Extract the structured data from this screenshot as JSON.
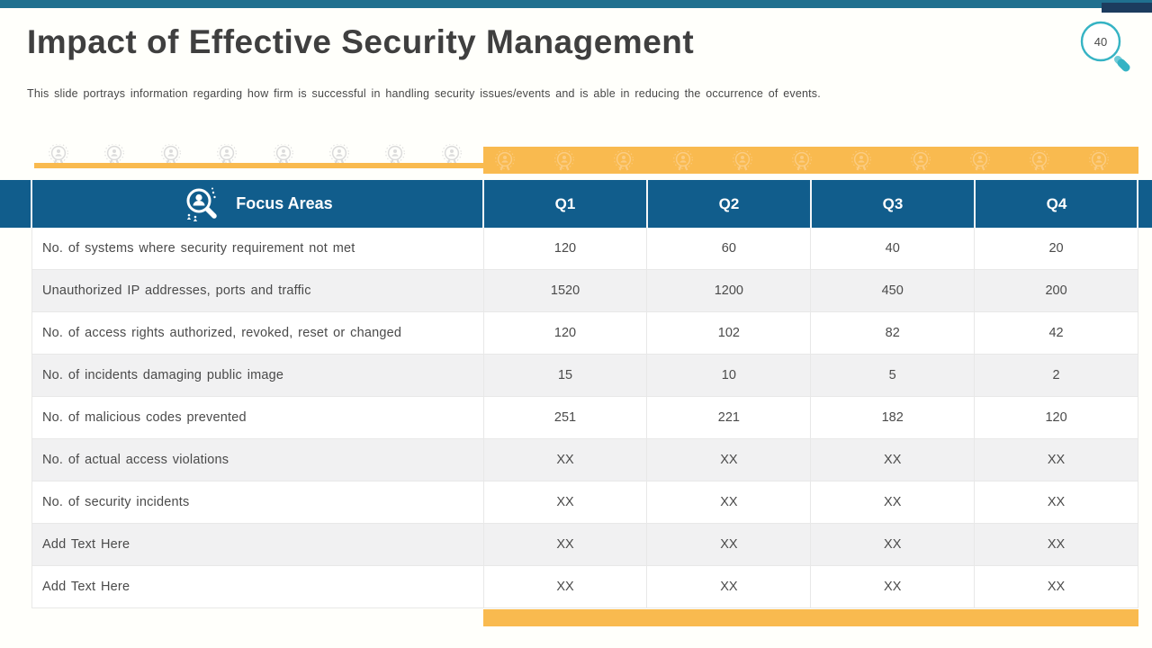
{
  "slide": {
    "title": "Impact of Effective Security Management",
    "subtitle": "This slide portrays information regarding how firm is successful in handling security issues/events and is able in reducing the occurrence of events.",
    "page_number": "40"
  },
  "table": {
    "focus_header": "Focus Areas",
    "quarters": [
      "Q1",
      "Q2",
      "Q3",
      "Q4"
    ],
    "rows": [
      {
        "label": "No. of systems where security requirement not met",
        "values": [
          "120",
          "60",
          "40",
          "20"
        ]
      },
      {
        "label": "Unauthorized IP addresses, ports and traffic",
        "values": [
          "1520",
          "1200",
          "450",
          "200"
        ]
      },
      {
        "label": "No. of access rights authorized, revoked, reset or changed",
        "values": [
          "120",
          "102",
          "82",
          "42"
        ]
      },
      {
        "label": "No. of incidents damaging public image",
        "values": [
          "15",
          "10",
          "5",
          "2"
        ]
      },
      {
        "label": "No. of malicious codes prevented",
        "values": [
          "251",
          "221",
          "182",
          "120"
        ]
      },
      {
        "label": "No. of actual access violations",
        "values": [
          "XX",
          "XX",
          "XX",
          "XX"
        ]
      },
      {
        "label": "No. of security incidents",
        "values": [
          "XX",
          "XX",
          "XX",
          "XX"
        ]
      },
      {
        "label": "Add Text Here",
        "values": [
          "XX",
          "XX",
          "XX",
          "XX"
        ]
      },
      {
        "label": "Add Text Here",
        "values": [
          "XX",
          "XX",
          "XX",
          "XX"
        ]
      }
    ]
  },
  "decor": {
    "left_badge_count": 8,
    "band_badge_count": 11,
    "badge_icon": "user-rosette-badge-icon",
    "header_icon": "magnifier-user-icon",
    "page_badge_icon": "magnifier-icon"
  },
  "colors": {
    "top_bar_teal": "#20708F",
    "navy_accent": "#1C3C5E",
    "header_blue": "#115D8C",
    "accent_orange": "#F9BA4F",
    "magnifier_teal": "#35B3C4",
    "title_gray": "#3F3F3F",
    "row_alt_gray": "#F1F1F2"
  }
}
